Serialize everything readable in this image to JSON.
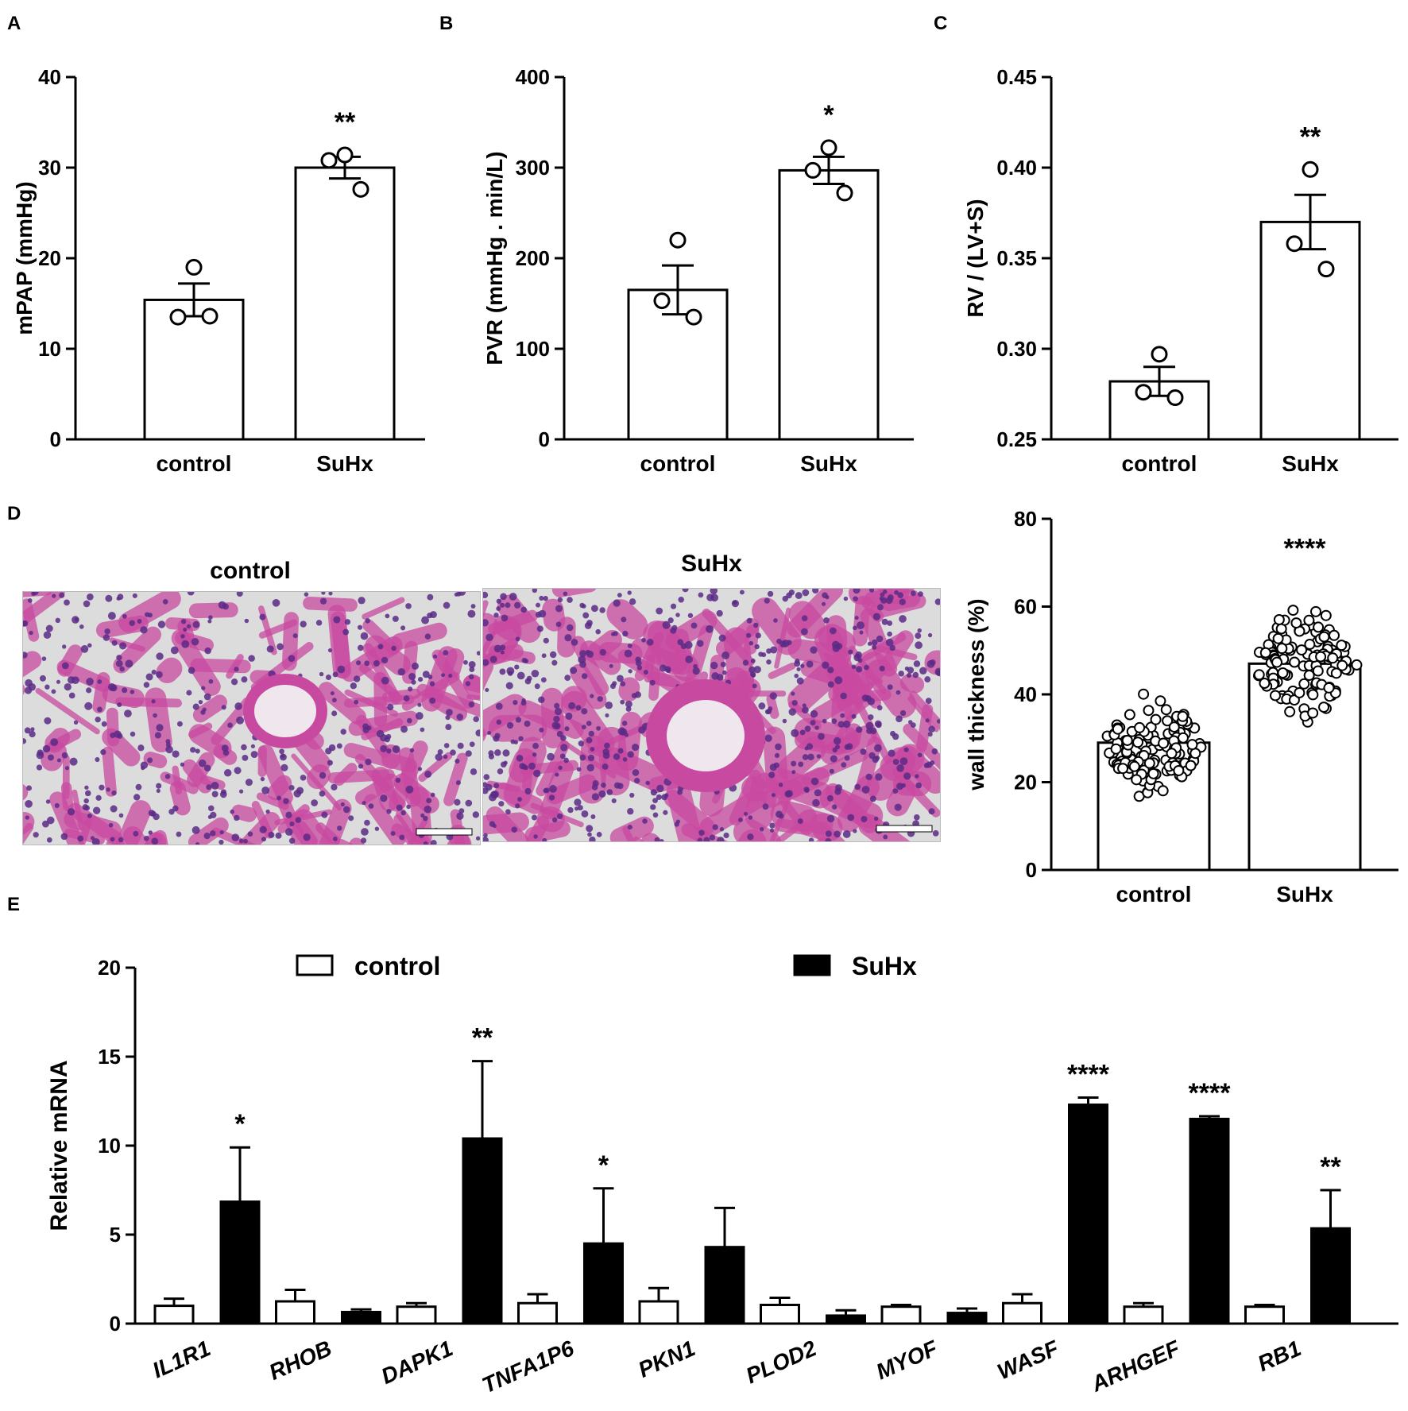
{
  "panels": {
    "A": "A",
    "B": "B",
    "C": "C",
    "D": "D",
    "E": "E"
  },
  "histology": {
    "left_title": "control",
    "right_title": "SuHx"
  },
  "colors": {
    "axis": "#000000",
    "bar_open": "#ffffff",
    "bar_filled": "#000000",
    "tissue": "#c84aa0",
    "nucleus": "#5a2a86",
    "background": "#dcdcdc"
  },
  "chart_data": [
    {
      "id": "A",
      "type": "bar",
      "categories": [
        "control",
        "SuHx"
      ],
      "values": [
        15.4,
        30.0
      ],
      "errors": [
        1.8,
        1.2
      ],
      "points": [
        [
          19.0,
          13.5,
          13.6
        ],
        [
          31.4,
          30.8,
          27.6
        ]
      ],
      "significance": [
        "",
        "**"
      ],
      "ylabel": "mPAP (mmHg)",
      "ylim": [
        0,
        40
      ],
      "yticks": [
        0,
        10,
        20,
        30,
        40
      ]
    },
    {
      "id": "B",
      "type": "bar",
      "categories": [
        "control",
        "SuHx"
      ],
      "values": [
        165,
        297
      ],
      "errors": [
        27,
        15
      ],
      "points": [
        [
          220,
          153,
          135
        ],
        [
          322,
          297,
          272
        ]
      ],
      "significance": [
        "",
        "*"
      ],
      "ylabel": "PVR (mmHg . min/L)",
      "ylim": [
        0,
        400
      ],
      "yticks": [
        0,
        100,
        200,
        300,
        400
      ]
    },
    {
      "id": "C",
      "type": "bar",
      "categories": [
        "control",
        "SuHx"
      ],
      "values": [
        0.282,
        0.37
      ],
      "errors": [
        0.008,
        0.015
      ],
      "points": [
        [
          0.297,
          0.276,
          0.273
        ],
        [
          0.399,
          0.358,
          0.344
        ]
      ],
      "significance": [
        "",
        "**"
      ],
      "ylabel": "RV / (LV+S)",
      "ylim": [
        0.25,
        0.45
      ],
      "yticks": [
        0.25,
        0.3,
        0.35,
        0.4,
        0.45
      ],
      "ytick_labels": [
        "0.25",
        "0.30",
        "0.35",
        "0.40",
        "0.45"
      ]
    },
    {
      "id": "D",
      "type": "scatter",
      "categories": [
        "control",
        "SuHx"
      ],
      "values": [
        29,
        47
      ],
      "range": [
        [
          14,
          43
        ],
        [
          30,
          64
        ]
      ],
      "significance": [
        "",
        "****"
      ],
      "ylabel": "wall thickness (%)",
      "ylim": [
        0,
        80
      ],
      "yticks": [
        0,
        20,
        40,
        60,
        80
      ]
    },
    {
      "id": "E",
      "type": "bar",
      "categories": [
        "IL1R1",
        "RHOB",
        "DAPK1",
        "TNFA1P6",
        "PKN1",
        "PLOD2",
        "MYOF",
        "WASF",
        "ARHGEF",
        "RB1"
      ],
      "series": [
        {
          "name": "control",
          "values": [
            1.0,
            1.25,
            0.95,
            1.15,
            1.25,
            1.05,
            0.95,
            1.15,
            0.95,
            0.95
          ],
          "errors": [
            0.4,
            0.65,
            0.2,
            0.5,
            0.75,
            0.4,
            0.1,
            0.5,
            0.2,
            0.1
          ]
        },
        {
          "name": "SuHx",
          "values": [
            6.85,
            0.65,
            10.4,
            4.5,
            4.3,
            0.45,
            0.6,
            12.3,
            11.5,
            5.35
          ],
          "errors": [
            3.05,
            0.15,
            4.35,
            3.1,
            2.2,
            0.3,
            0.25,
            0.4,
            0.15,
            2.15
          ]
        }
      ],
      "significance": [
        "*",
        "",
        "**",
        "*",
        "",
        "",
        "",
        "****",
        "****",
        "**"
      ],
      "ylabel": "Relative  mRNA",
      "ylim": [
        0,
        20
      ],
      "yticks": [
        0,
        5,
        10,
        15,
        20
      ],
      "legend": "top"
    }
  ]
}
